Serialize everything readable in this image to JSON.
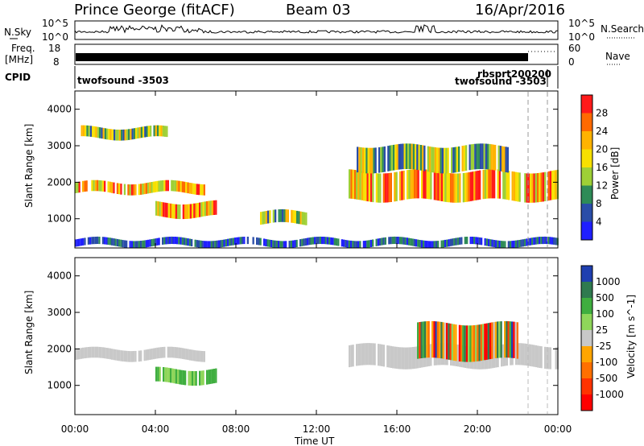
{
  "header": {
    "station": "Prince George (fitACF)",
    "beam": "Beam 03",
    "date": "16/Apr/2016"
  },
  "top_panels": {
    "nsky_label": "N.Sky",
    "nsky_ticks": [
      "10^5",
      "10^0"
    ],
    "nsearch_label": "N.Search",
    "nsearch_ticks": [
      "10^5",
      "10^0"
    ],
    "freq_label_1": "Freq.",
    "freq_label_2": "[MHz]",
    "freq_ticks": [
      "18",
      "8"
    ],
    "nave_label": "Nave",
    "nave_ticks": [
      "60",
      "0"
    ],
    "cpid_label": "CPID",
    "cpid_entries": [
      "twofsound -3503",
      "rbsprt200200",
      "twofsound -3503"
    ]
  },
  "chart_data": [
    {
      "type": "heatmap",
      "name": "power",
      "ylabel": "Slant Range [km]",
      "yticks": [
        "4000",
        "3000",
        "2000",
        "1000"
      ],
      "ylim": [
        200,
        4500
      ],
      "xlim": [
        0,
        24
      ],
      "colorbar_label": "Power [dB]",
      "colorbar_ticks": [
        "28",
        "24",
        "20",
        "16",
        "12",
        "8",
        "4"
      ],
      "colorbar_colors": [
        "#ff1a1a",
        "#ff6a00",
        "#ffb300",
        "#f7e000",
        "#9ed036",
        "#2e8b57",
        "#2a4da8",
        "#1f1fff"
      ],
      "echo_bands": [
        {
          "t0": 0.0,
          "t1": 6.4,
          "range": [
            1700,
            2000
          ],
          "level": "high"
        },
        {
          "t0": 0.3,
          "t1": 4.6,
          "range": [
            3200,
            3500
          ],
          "level": "medium"
        },
        {
          "t0": 4.0,
          "t1": 7.0,
          "range": [
            1050,
            1450
          ],
          "level": "high"
        },
        {
          "t0": 9.2,
          "t1": 11.5,
          "range": [
            850,
            1200
          ],
          "level": "medium"
        },
        {
          "t0": 13.6,
          "t1": 24.0,
          "range": [
            1500,
            2300
          ],
          "level": "high"
        },
        {
          "t0": 14.0,
          "t1": 21.5,
          "range": [
            2300,
            3000
          ],
          "level": "medium"
        },
        {
          "t0": 0.0,
          "t1": 24.0,
          "range": [
            250,
            450
          ],
          "level": "low"
        }
      ]
    },
    {
      "type": "heatmap",
      "name": "velocity",
      "xlabel": "Time UT",
      "ylabel": "Slant Range [km]",
      "yticks": [
        "4000",
        "3000",
        "2000",
        "1000"
      ],
      "ylim": [
        200,
        4500
      ],
      "xlim": [
        0,
        24
      ],
      "xticks": [
        "00:00",
        "04:00",
        "08:00",
        "12:00",
        "16:00",
        "20:00",
        "00:00"
      ],
      "colorbar_label": "Velocity [m s^-1]",
      "colorbar_ticks": [
        "1000",
        "500",
        "100",
        "25",
        "-25",
        "-100",
        "-500",
        "-1000"
      ],
      "colorbar_colors": [
        "#1f3fb0",
        "#2f7a4f",
        "#3fae3f",
        "#8fd65a",
        "#c8c8c8",
        "#ffa500",
        "#ff7000",
        "#ff3300",
        "#ff0000"
      ],
      "echo_bands": [
        {
          "t0": 0.0,
          "t1": 6.4,
          "range": [
            1700,
            2000
          ],
          "velocity": "ground-scatter"
        },
        {
          "t0": 4.0,
          "t1": 7.0,
          "range": [
            1050,
            1450
          ],
          "velocity": "positive"
        },
        {
          "t0": 13.6,
          "t1": 24.0,
          "range": [
            1500,
            2100
          ],
          "velocity": "ground-scatter"
        },
        {
          "t0": 17.0,
          "t1": 22.0,
          "range": [
            1700,
            2700
          ],
          "velocity": "mixed"
        }
      ]
    }
  ]
}
